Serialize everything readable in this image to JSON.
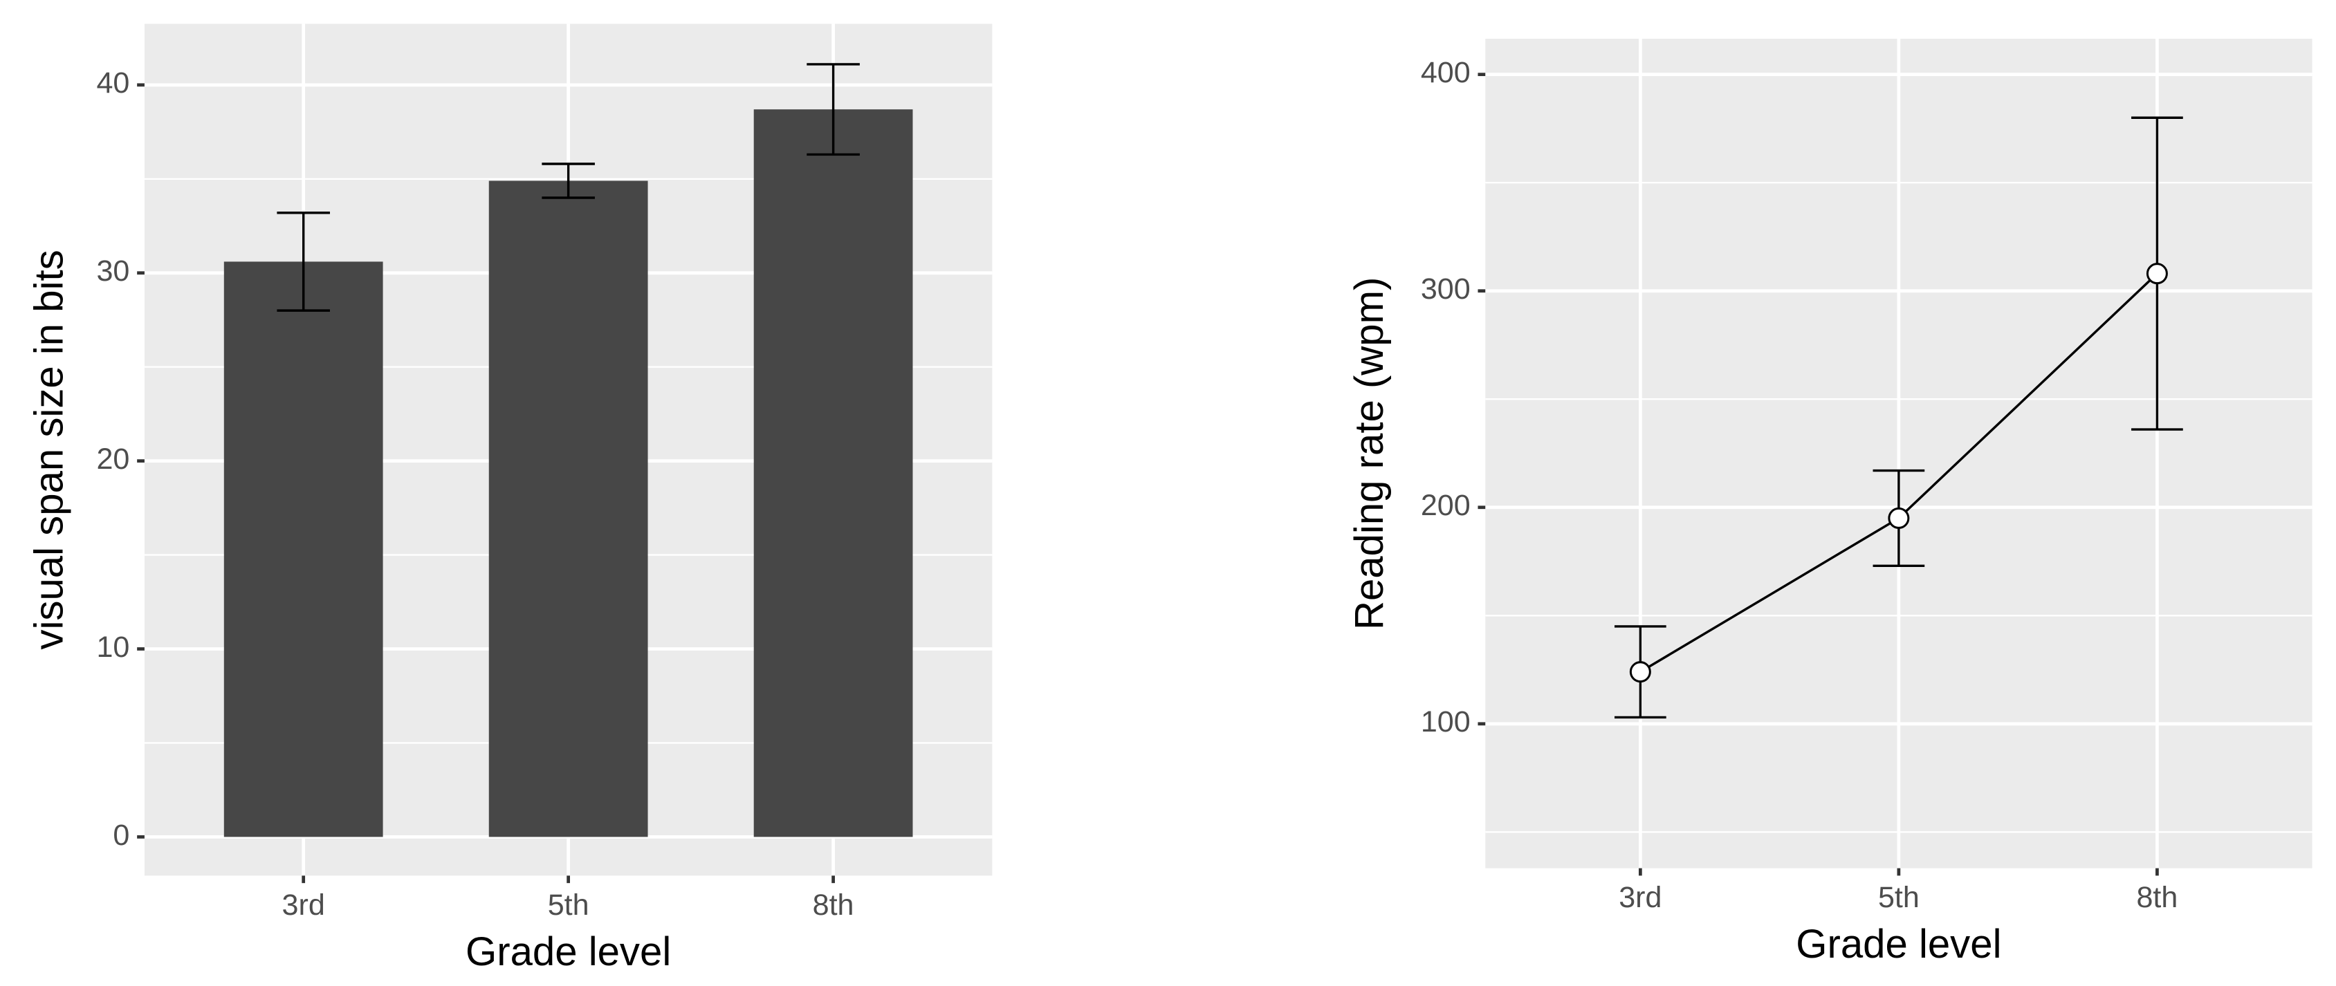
{
  "chart_data": [
    {
      "type": "bar",
      "categories": [
        "3rd",
        "5th",
        "8th"
      ],
      "values": [
        30.6,
        34.9,
        38.7
      ],
      "errors": [
        2.6,
        0.9,
        2.4
      ],
      "color": "#474747",
      "x_label": "Grade level",
      "y_label": "visual span size in bits",
      "ylim": [
        -2.06,
        43.25
      ],
      "yticks": [
        0,
        10,
        20,
        30,
        40
      ],
      "grid": true
    },
    {
      "type": "line",
      "categories": [
        "3rd",
        "5th",
        "8th"
      ],
      "values": [
        124,
        195,
        308
      ],
      "errors": [
        21,
        22,
        72
      ],
      "color": "#000000",
      "x_label": "Grade level",
      "y_label": "Reading rate (wpm)",
      "ylim": [
        33.3,
        416.5
      ],
      "yticks": [
        100,
        200,
        300,
        400
      ],
      "grid": true
    }
  ]
}
